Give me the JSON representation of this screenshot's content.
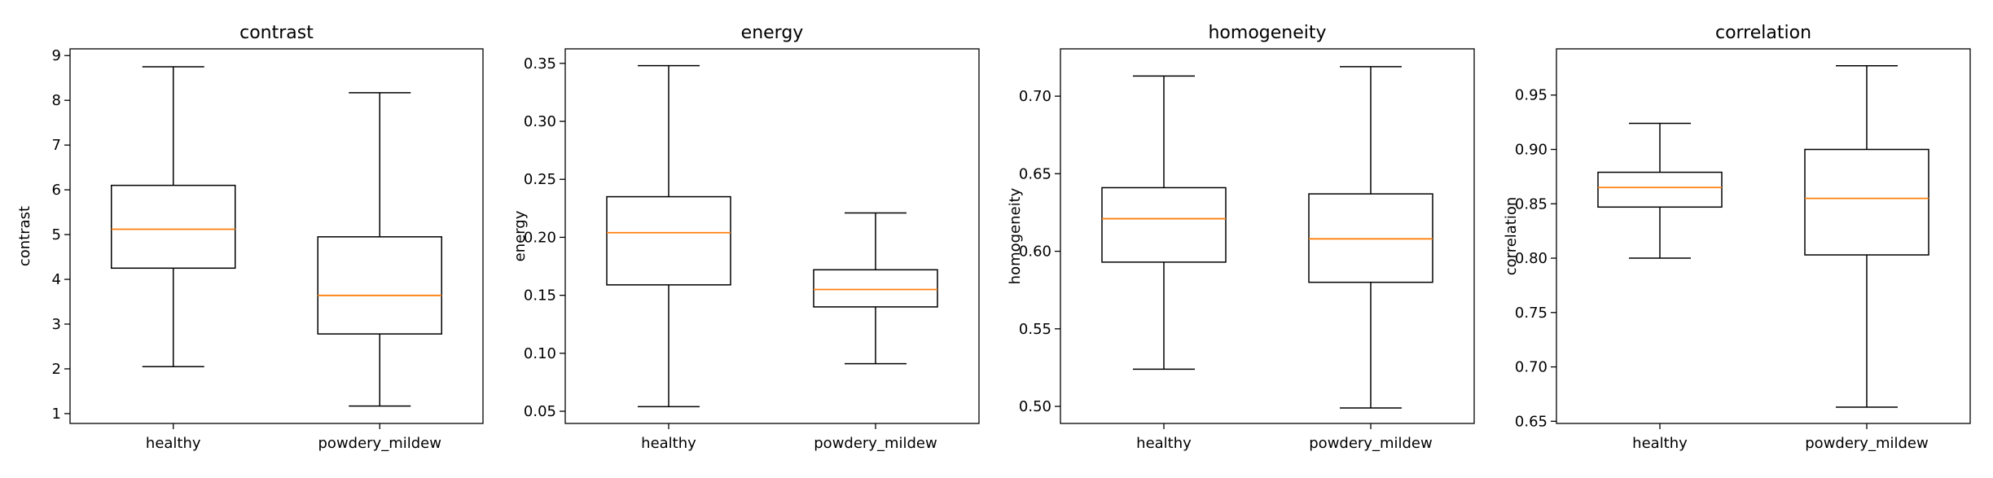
{
  "chart_data": [
    {
      "type": "box",
      "title": "contrast",
      "ylabel": "contrast",
      "categories": [
        "healthy",
        "powdery_mildew"
      ],
      "ylim": [
        0.78,
        9.15
      ],
      "yticks": [
        1,
        2,
        3,
        4,
        5,
        6,
        7,
        8,
        9
      ],
      "ytick_labels": [
        "1",
        "2",
        "3",
        "4",
        "5",
        "6",
        "7",
        "8",
        "9"
      ],
      "boxes": [
        {
          "whisker_low": 2.05,
          "q1": 4.25,
          "median": 5.12,
          "q3": 6.1,
          "whisker_high": 8.75
        },
        {
          "whisker_low": 1.17,
          "q1": 2.78,
          "median": 3.64,
          "q3": 4.95,
          "whisker_high": 8.17
        }
      ]
    },
    {
      "type": "box",
      "title": "energy",
      "ylabel": "energy",
      "categories": [
        "healthy",
        "powdery_mildew"
      ],
      "ylim": [
        0.0395,
        0.3625
      ],
      "yticks": [
        0.05,
        0.1,
        0.15,
        0.2,
        0.25,
        0.3,
        0.35
      ],
      "ytick_labels": [
        "0.05",
        "0.10",
        "0.15",
        "0.20",
        "0.25",
        "0.30",
        "0.35"
      ],
      "boxes": [
        {
          "whisker_low": 0.054,
          "q1": 0.159,
          "median": 0.204,
          "q3": 0.235,
          "whisker_high": 0.348
        },
        {
          "whisker_low": 0.091,
          "q1": 0.14,
          "median": 0.155,
          "q3": 0.172,
          "whisker_high": 0.221
        }
      ]
    },
    {
      "type": "box",
      "title": "homogeneity",
      "ylabel": "homogeneity",
      "categories": [
        "healthy",
        "powdery_mildew"
      ],
      "ylim": [
        0.489,
        0.7305
      ],
      "yticks": [
        0.5,
        0.55,
        0.6,
        0.65,
        0.7
      ],
      "ytick_labels": [
        "0.50",
        "0.55",
        "0.60",
        "0.65",
        "0.70"
      ],
      "boxes": [
        {
          "whisker_low": 0.524,
          "q1": 0.593,
          "median": 0.621,
          "q3": 0.641,
          "whisker_high": 0.713
        },
        {
          "whisker_low": 0.499,
          "q1": 0.58,
          "median": 0.608,
          "q3": 0.637,
          "whisker_high": 0.719
        }
      ]
    },
    {
      "type": "box",
      "title": "correlation",
      "ylabel": "correlation",
      "categories": [
        "healthy",
        "powdery_mildew"
      ],
      "ylim": [
        0.648,
        0.9925
      ],
      "yticks": [
        0.65,
        0.7,
        0.75,
        0.8,
        0.85,
        0.9,
        0.95
      ],
      "ytick_labels": [
        "0.65",
        "0.70",
        "0.75",
        "0.80",
        "0.85",
        "0.90",
        "0.95"
      ],
      "boxes": [
        {
          "whisker_low": 0.8,
          "q1": 0.847,
          "median": 0.865,
          "q3": 0.879,
          "whisker_high": 0.924
        },
        {
          "whisker_low": 0.663,
          "q1": 0.803,
          "median": 0.855,
          "q3": 0.9,
          "whisker_high": 0.977
        }
      ]
    }
  ],
  "colors": {
    "box": "#000000",
    "median": "#ff7f0e",
    "background": "#ffffff"
  },
  "grid": false,
  "legend": "none"
}
